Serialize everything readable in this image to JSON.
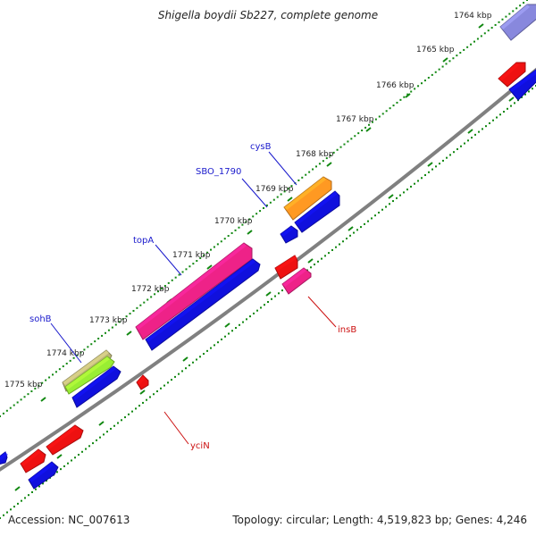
{
  "title": "Shigella boydii Sb227, complete genome",
  "footer": {
    "accession": "Accession: NC_007613",
    "topology": "Topology: circular; Length: 4,519,823 bp; Genes: 4,246"
  },
  "colors": {
    "backbone": "#808080",
    "tick": "#118811",
    "forward_label": "#1a1acc",
    "reverse_label": "#cc1111",
    "blue": "#1010dd",
    "red": "#ee1111",
    "magenta": "#ee2288",
    "orange": "#ff9922",
    "olive": "#bbb477",
    "lightgreen": "#99ee33",
    "purple": "#8888dd"
  },
  "kbp_ticks": [
    {
      "kbp": 1764,
      "label": "1764 kbp"
    },
    {
      "kbp": 1765,
      "label": "1765 kbp"
    },
    {
      "kbp": 1766,
      "label": "1766 kbp"
    },
    {
      "kbp": 1767,
      "label": "1767 kbp"
    },
    {
      "kbp": 1768,
      "label": "1768 kbp"
    },
    {
      "kbp": 1769,
      "label": "1769 kbp"
    },
    {
      "kbp": 1770,
      "label": "1770 kbp"
    },
    {
      "kbp": 1771,
      "label": "1771 kbp"
    },
    {
      "kbp": 1772,
      "label": "1772 kbp"
    },
    {
      "kbp": 1773,
      "label": "1773 kbp"
    },
    {
      "kbp": 1774,
      "label": "1774 kbp"
    },
    {
      "kbp": 1775,
      "label": "1775 kbp"
    }
  ],
  "gene_labels": [
    {
      "id": "cysB",
      "text": "cysB",
      "strand": "forward"
    },
    {
      "id": "sbo1790",
      "text": "SBO_1790",
      "strand": "forward"
    },
    {
      "id": "topA",
      "text": "topA",
      "strand": "forward"
    },
    {
      "id": "sohB",
      "text": "sohB",
      "strand": "forward"
    },
    {
      "id": "insB",
      "text": "insB",
      "strand": "reverse"
    },
    {
      "id": "yciN",
      "text": "yciN",
      "strand": "reverse"
    }
  ],
  "features": [
    {
      "id": "f-1764-purple",
      "color": "purple",
      "strand": "forward"
    },
    {
      "id": "f-1764-red",
      "color": "red",
      "strand": "reverse"
    },
    {
      "id": "f-1764-blue",
      "color": "blue",
      "strand": "reverse"
    },
    {
      "id": "f-cysB",
      "color": "orange",
      "strand": "forward"
    },
    {
      "id": "f-cysB-blue",
      "color": "blue",
      "strand": "forward"
    },
    {
      "id": "f-1790-blue",
      "color": "blue",
      "strand": "forward"
    },
    {
      "id": "f-insB-red",
      "color": "red",
      "strand": "reverse"
    },
    {
      "id": "f-insB",
      "color": "magenta",
      "strand": "reverse"
    },
    {
      "id": "f-topA",
      "color": "magenta",
      "strand": "forward"
    },
    {
      "id": "f-topA-blue",
      "color": "blue",
      "strand": "forward"
    },
    {
      "id": "f-sohB-olive",
      "color": "olive",
      "strand": "forward"
    },
    {
      "id": "f-sohB-green",
      "color": "lightgreen",
      "strand": "forward"
    },
    {
      "id": "f-sohB-blue",
      "color": "blue",
      "strand": "forward"
    },
    {
      "id": "f-yciN",
      "color": "red",
      "strand": "reverse"
    },
    {
      "id": "f-1776-blue",
      "color": "blue",
      "strand": "forward"
    },
    {
      "id": "f-1776-red1",
      "color": "red",
      "strand": "reverse"
    },
    {
      "id": "f-1776-red2",
      "color": "red",
      "strand": "reverse"
    },
    {
      "id": "f-1776-blue2",
      "color": "blue",
      "strand": "reverse"
    }
  ]
}
